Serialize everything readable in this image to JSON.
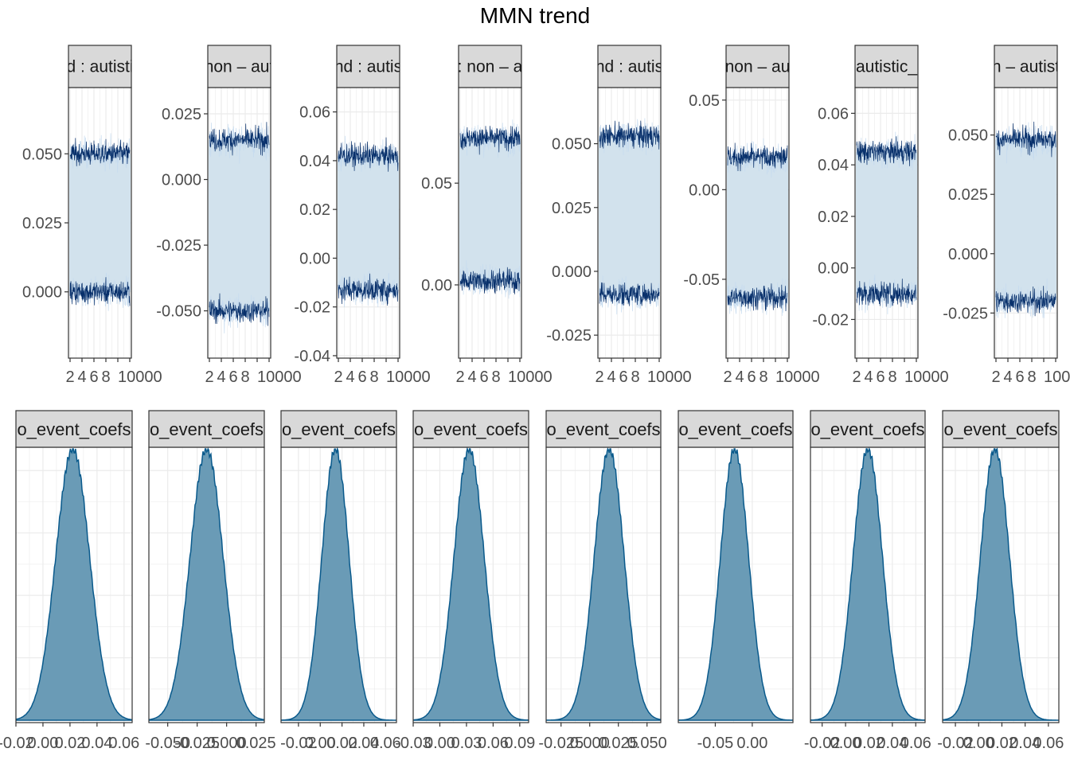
{
  "title": "MMN trend",
  "colors": {
    "trace_dark": "#08306b",
    "trace_light": "#c6dbef",
    "band": "#d2e2ed",
    "density_fill": "#6a9bb6",
    "density_line": "#0a5a8c",
    "strip_fill": "#d9d9d9",
    "grid": "#ebebeb"
  },
  "chart_data": [
    {
      "type": "line",
      "panel": "trace-1",
      "strip": "d : autisti",
      "x_ticks": [
        "2",
        "4",
        "6",
        "8",
        "10000"
      ],
      "y_ticks": [
        "0.050",
        "0.025",
        "0.000"
      ],
      "y_tick_values": [
        0.05,
        0.025,
        0.0
      ],
      "ylim": [
        -0.024,
        0.074
      ],
      "x_range": [
        0,
        10000
      ],
      "upper_band": 0.05,
      "lower_band": 0.0
    },
    {
      "type": "line",
      "panel": "trace-2",
      "strip": "non – aut",
      "x_ticks": [
        "2",
        "4",
        "6",
        "8",
        "10000"
      ],
      "y_ticks": [
        "0.025",
        "0.000",
        "-0.025",
        "-0.050"
      ],
      "y_tick_values": [
        0.025,
        0.0,
        -0.025,
        -0.05
      ],
      "ylim": [
        -0.068,
        0.035
      ],
      "x_range": [
        0,
        10000
      ],
      "upper_band": 0.015,
      "lower_band": -0.05
    },
    {
      "type": "line",
      "panel": "trace-3",
      "strip": "nd : autis",
      "x_ticks": [
        "2",
        "4",
        "6",
        "8",
        "10000"
      ],
      "y_ticks": [
        "0.06",
        "0.04",
        "0.02",
        "0.00",
        "-0.02",
        "-0.04"
      ],
      "y_tick_values": [
        0.06,
        0.04,
        0.02,
        0.0,
        -0.02,
        -0.04
      ],
      "ylim": [
        -0.041,
        0.07
      ],
      "x_range": [
        0,
        10000
      ],
      "upper_band": 0.042,
      "lower_band": -0.013
    },
    {
      "type": "line",
      "panel": "trace-4",
      "strip": ": non – a",
      "x_ticks": [
        "2",
        "4",
        "6",
        "8",
        "10000"
      ],
      "y_ticks": [
        "0.05",
        "0.00"
      ],
      "y_tick_values": [
        0.05,
        0.0
      ],
      "ylim": [
        -0.036,
        0.097
      ],
      "x_range": [
        0,
        10000
      ],
      "upper_band": 0.072,
      "lower_band": 0.002
    },
    {
      "type": "line",
      "panel": "trace-5",
      "strip": "nd : autis",
      "x_ticks": [
        "2",
        "4",
        "6",
        "8",
        "10000"
      ],
      "y_ticks": [
        "0.050",
        "0.025",
        "0.000",
        "-0.025"
      ],
      "y_tick_values": [
        0.05,
        0.025,
        0.0,
        -0.025
      ],
      "ylim": [
        -0.034,
        0.072
      ],
      "x_range": [
        0,
        10000
      ],
      "upper_band": 0.053,
      "lower_band": -0.009
    },
    {
      "type": "line",
      "panel": "trace-6",
      "strip": "non – au",
      "x_ticks": [
        "2",
        "4",
        "6",
        "8",
        "10000"
      ],
      "y_ticks": [
        "0.05",
        "0.00",
        "-0.05"
      ],
      "y_tick_values": [
        0.05,
        0.0,
        -0.05
      ],
      "ylim": [
        -0.094,
        0.057
      ],
      "x_range": [
        0,
        10000
      ],
      "upper_band": 0.018,
      "lower_band": -0.06
    },
    {
      "type": "line",
      "panel": "trace-7",
      "strip": "autistic_",
      "x_ticks": [
        "2",
        "4",
        "6",
        "8",
        "10000"
      ],
      "y_ticks": [
        "0.06",
        "0.04",
        "0.02",
        "0.00",
        "-0.02"
      ],
      "y_tick_values": [
        0.06,
        0.04,
        0.02,
        0.0,
        -0.02
      ],
      "ylim": [
        -0.035,
        0.07
      ],
      "x_range": [
        0,
        10000
      ],
      "upper_band": 0.045,
      "lower_band": -0.01
    },
    {
      "type": "line",
      "panel": "trace-8",
      "strip": "n – autist",
      "x_ticks": [
        "2",
        "4",
        "6",
        "8",
        "10000"
      ],
      "y_ticks": [
        "0.050",
        "0.025",
        "0.000",
        "-0.025"
      ],
      "y_tick_values": [
        0.05,
        0.025,
        0.0,
        -0.025
      ],
      "ylim": [
        -0.044,
        0.07
      ],
      "x_range": [
        0,
        10000
      ],
      "upper_band": 0.048,
      "lower_band": -0.02
    },
    {
      "type": "area",
      "panel": "density-1",
      "strip": "o_event_coefs",
      "x_ticks": [
        "-0.02",
        "0.00",
        "0.02",
        "0.04",
        "0.06"
      ],
      "x_tick_values": [
        -0.02,
        0.0,
        0.02,
        0.04,
        0.06
      ],
      "xlim": [
        -0.02,
        0.066
      ],
      "mean": 0.022,
      "sd": 0.0125
    },
    {
      "type": "area",
      "panel": "density-2",
      "strip": "o_event_coefs",
      "x_ticks": [
        "-0.050",
        "-0.025",
        "0.000",
        "0.025"
      ],
      "x_tick_values": [
        -0.05,
        -0.025,
        0.0,
        0.025
      ],
      "xlim": [
        -0.066,
        0.032
      ],
      "mean": -0.017,
      "sd": 0.014
    },
    {
      "type": "area",
      "panel": "density-3",
      "strip": "o_event_coefs",
      "x_ticks": [
        "-0.02",
        "0.00",
        "0.02",
        "0.04",
        "0.06"
      ],
      "x_tick_values": [
        -0.02,
        0.0,
        0.02,
        0.04,
        0.06
      ],
      "xlim": [
        -0.036,
        0.07
      ],
      "mean": 0.014,
      "sd": 0.0125
    },
    {
      "type": "area",
      "panel": "density-4",
      "strip": "o_event_coefs",
      "x_ticks": [
        "-0.03",
        "0.00",
        "0.03",
        "0.06",
        "0.09"
      ],
      "x_tick_values": [
        -0.03,
        0.0,
        0.03,
        0.06,
        0.09
      ],
      "xlim": [
        -0.03,
        0.1
      ],
      "mean": 0.033,
      "sd": 0.017
    },
    {
      "type": "area",
      "panel": "density-5",
      "strip": "o_event_coefs",
      "x_ticks": [
        "-0.025",
        "0.000",
        "0.025",
        "0.050"
      ],
      "x_tick_values": [
        -0.025,
        0.0,
        0.025,
        0.05
      ],
      "xlim": [
        -0.038,
        0.062
      ],
      "mean": 0.017,
      "sd": 0.013
    },
    {
      "type": "area",
      "panel": "density-6",
      "strip": "o_event_coefs",
      "x_ticks": [
        "-0.05",
        "0.00"
      ],
      "x_tick_values": [
        -0.05,
        0.0
      ],
      "xlim": [
        -0.1,
        0.055
      ],
      "mean": -0.024,
      "sd": 0.019
    },
    {
      "type": "area",
      "panel": "density-7",
      "strip": "o_event_coefs",
      "x_ticks": [
        "-0.02",
        "0.00",
        "0.02",
        "0.04",
        "0.06"
      ],
      "x_tick_values": [
        -0.02,
        0.0,
        0.02,
        0.04,
        0.06
      ],
      "xlim": [
        -0.03,
        0.068
      ],
      "mean": 0.019,
      "sd": 0.0125
    },
    {
      "type": "area",
      "panel": "density-8",
      "strip": "o_event_coefs",
      "x_ticks": [
        "-0.02",
        "0.00",
        "0.02",
        "0.04",
        "0.06"
      ],
      "x_tick_values": [
        -0.02,
        0.0,
        0.02,
        0.04,
        0.06
      ],
      "xlim": [
        -0.031,
        0.069
      ],
      "mean": 0.014,
      "sd": 0.0125
    }
  ]
}
